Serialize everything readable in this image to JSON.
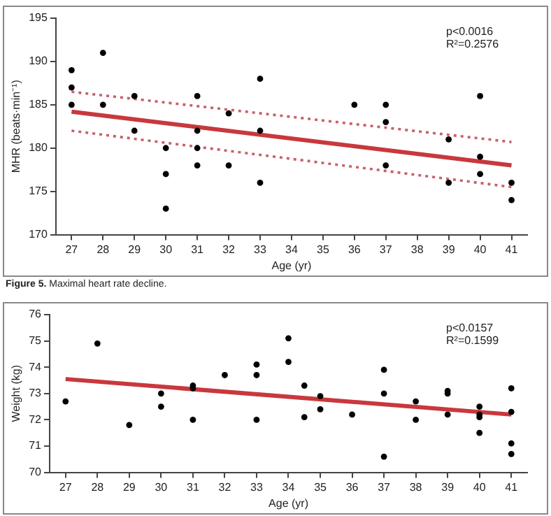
{
  "chart_data": [
    {
      "type": "scatter",
      "title": "Figure 5. Maximal heart rate decline.",
      "xlabel": "Age (yr)",
      "ylabel": "MHR (beats·min⁻¹)",
      "annotations": [
        "p<0.0016",
        "R²=0.2576"
      ],
      "xlim": [
        26.5,
        41.5
      ],
      "xticks": [
        27,
        28,
        29,
        30,
        31,
        32,
        33,
        34,
        35,
        36,
        37,
        38,
        39,
        40,
        41
      ],
      "ylim": [
        170,
        195
      ],
      "yticks": [
        170,
        175,
        180,
        185,
        190,
        195
      ],
      "grid": false,
      "legend": false,
      "marker": "circle",
      "series": [
        {
          "type": "scatter",
          "color": "#000000",
          "x": [
            27,
            27,
            27,
            28,
            28,
            29,
            29,
            30,
            30,
            30,
            31,
            31,
            31,
            31,
            32,
            32,
            33,
            33,
            33,
            36,
            37,
            37,
            37,
            39,
            39,
            40,
            40,
            40,
            41,
            41
          ],
          "values": [
            189,
            187,
            185,
            191,
            185,
            186,
            182,
            180,
            177,
            173,
            186,
            182,
            180,
            178,
            184,
            178,
            188,
            182,
            176,
            185,
            185,
            183,
            178,
            181,
            176,
            186,
            179,
            177,
            176,
            174
          ]
        },
        {
          "type": "line",
          "color": "#c8383c",
          "line_style": "solid",
          "marker": "none",
          "x": [
            27,
            41
          ],
          "values": [
            184.2,
            178
          ]
        },
        {
          "type": "line",
          "color": "#c8606c",
          "line_style": "dotted",
          "marker": "none",
          "x": [
            27,
            41
          ],
          "values": [
            186.5,
            180.7
          ]
        },
        {
          "type": "line",
          "color": "#c8606c",
          "line_style": "dotted",
          "marker": "none",
          "x": [
            27,
            41
          ],
          "values": [
            182,
            175.5
          ]
        }
      ]
    },
    {
      "type": "scatter",
      "xlabel": "Age (yr)",
      "ylabel": "Weight (kg)",
      "annotations": [
        "p<0.0157",
        "R²=0.1599"
      ],
      "xlim": [
        26.5,
        41.5
      ],
      "xticks": [
        27,
        28,
        29,
        30,
        31,
        32,
        33,
        34,
        35,
        36,
        37,
        38,
        39,
        40,
        41
      ],
      "ylim": [
        70,
        76
      ],
      "yticks": [
        70,
        71,
        72,
        73,
        74,
        75,
        76
      ],
      "grid": false,
      "legend": false,
      "marker": "circle",
      "series": [
        {
          "type": "scatter",
          "color": "#000000",
          "x": [
            27,
            28,
            29,
            30,
            30,
            31,
            31,
            31,
            32,
            33,
            33,
            33,
            34,
            34,
            34.5,
            34.5,
            35,
            35,
            36,
            37,
            37,
            37,
            38,
            38,
            39,
            39,
            39,
            40,
            40,
            40,
            40,
            41,
            41,
            41,
            41
          ],
          "values": [
            72.7,
            74.9,
            71.8,
            73,
            72.5,
            73.3,
            73.2,
            72,
            73.7,
            74.1,
            73.7,
            72,
            75.1,
            74.2,
            73.3,
            72.1,
            72.9,
            72.4,
            72.2,
            73.9,
            73,
            70.6,
            72.7,
            72,
            73.1,
            73,
            72.2,
            72.5,
            72.2,
            72.1,
            71.5,
            73.2,
            72.3,
            71.1,
            70.7
          ]
        },
        {
          "type": "line",
          "color": "#c8383c",
          "line_style": "solid",
          "marker": "none",
          "x": [
            27,
            41
          ],
          "values": [
            73.55,
            72.2
          ]
        }
      ]
    }
  ]
}
